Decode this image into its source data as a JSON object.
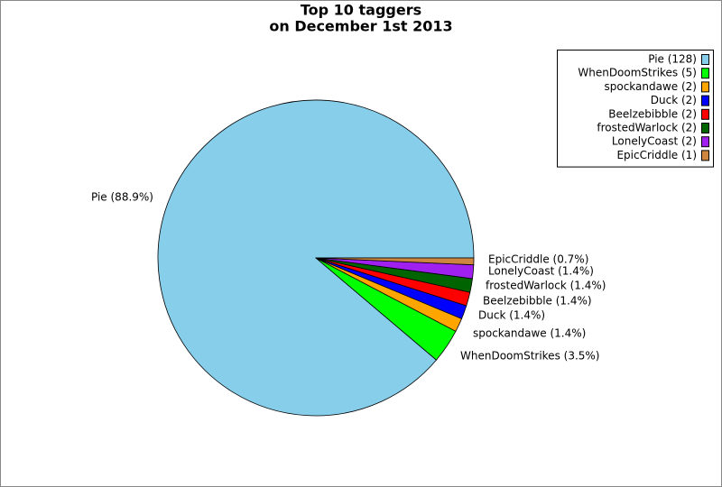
{
  "chart_data": {
    "type": "pie",
    "title": [
      "Top 10 taggers",
      "on December 1st 2013"
    ],
    "categories": [
      "Pie",
      "WhenDoomStrikes",
      "spockandawe",
      "Duck",
      "Beelzebibble",
      "frostedWarlock",
      "LonelyCoast",
      "EpicCriddle"
    ],
    "values": [
      88.9,
      3.5,
      1.4,
      1.4,
      1.4,
      1.4,
      1.4,
      0.7
    ],
    "value_labels": [
      "Pie (88.9%)",
      "WhenDoomStrikes (3.5%)",
      "spockandawe (1.4%)",
      "Duck (1.4%)",
      "Beelzebibble (1.4%)",
      "frostedWarlock (1.4%)",
      "LonelyCoast (1.4%)",
      "EpicCriddle (0.7%)"
    ],
    "legend_labels": [
      "Pie (128)",
      "WhenDoomStrikes (5)",
      "spockandawe (2)",
      "Duck (2)",
      "Beelzebibble (2)",
      "frostedWarlock (2)",
      "LonelyCoast (2)",
      "EpicCriddle (1)"
    ],
    "colors": [
      "#87ceeb",
      "#00ff00",
      "#ffa500",
      "#0000ff",
      "#ff0000",
      "#006400",
      "#a020f0",
      "#cd853f"
    ],
    "legend": "upper right"
  }
}
